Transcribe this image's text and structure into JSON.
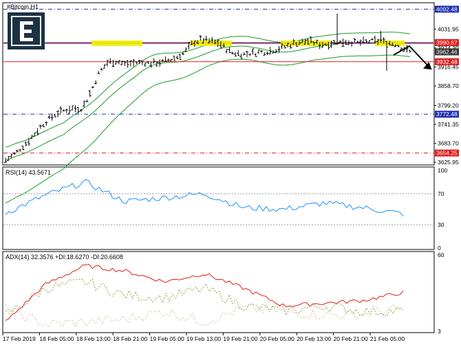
{
  "main_panel": {
    "symbol_title": "#Bitcoin,H1",
    "y_ticks": [
      "4031.95",
      "3974.30",
      "3916.45",
      "3858.70",
      "3799.20",
      "3741.35",
      "3683.70",
      "3625.95"
    ],
    "y_tick_values": [
      4031.95,
      3974.3,
      3916.45,
      3858.7,
      3799.2,
      3741.35,
      3683.7,
      3625.95
    ],
    "levels": [
      {
        "label": "4092.48",
        "value": 4092.48,
        "color": "#1f2fb0",
        "style": "dashdot"
      },
      {
        "label": "3990.67",
        "value": 3990.67,
        "color": "#e01b1b",
        "style": "solid"
      },
      {
        "label": "3962.46",
        "value": 3962.46,
        "color": "#333333",
        "style": "none"
      },
      {
        "label": "3932.48",
        "value": 3932.48,
        "color": "#e01b1b",
        "style": "solid"
      },
      {
        "label": "3772.48",
        "value": 3772.48,
        "color": "#1f2fb0",
        "style": "dashdot"
      },
      {
        "label": "3654.25",
        "value": 3654.25,
        "color": "#e01b1b",
        "style": "dashdot"
      }
    ],
    "blue_line_value": 3990.67,
    "colors": {
      "bars": "#000000",
      "bands": "#1a9a2a",
      "highlight": "#f0f000",
      "arrow": "#000000"
    }
  },
  "rsi_panel": {
    "title": "RSI(14) 43.5671",
    "y_ticks": [
      "100",
      "70",
      "30",
      "0"
    ],
    "color": "#1e90ff",
    "levels_dashed": [
      70,
      30
    ]
  },
  "adx_panel": {
    "title": "ADX(14) 32.3576 +DI:18.6270 -DI:20.6608",
    "y_ticks": [
      "60",
      "3"
    ],
    "colors": {
      "adx": "#e01b1b",
      "plus_di": "#9aa04a",
      "minus_di": "#c8c8a0"
    }
  },
  "x_axis": {
    "ticks": [
      "17 Feb 2019",
      "18 Feb 05:00",
      "18 Feb 13:00",
      "18 Feb 21:00",
      "19 Feb 05:00",
      "19 Feb 13:00",
      "19 Feb 21:00",
      "20 Feb 05:00",
      "20 Feb 13:00",
      "20 Feb 21:00",
      "21 Feb 05:00"
    ]
  },
  "chart_data": [
    {
      "type": "line",
      "title": "#Bitcoin,H1",
      "xlabel": "",
      "ylabel": "",
      "ylim": [
        3620,
        4110
      ],
      "x": [
        "17 Feb 2019",
        "18 Feb 05:00",
        "18 Feb 13:00",
        "18 Feb 21:00",
        "19 Feb 05:00",
        "19 Feb 13:00",
        "19 Feb 21:00",
        "20 Feb 05:00",
        "20 Feb 13:00",
        "20 Feb 21:00",
        "21 Feb 05:00"
      ],
      "series": [
        {
          "values": [
            3632,
            3790,
            3930,
            3925,
            3935,
            4000,
            3975,
            3985,
            3990,
            3995,
            3965
          ]
        }
      ]
    },
    {
      "type": "line",
      "title": "RSI(14) 43.5671",
      "ylim": [
        0,
        100
      ],
      "x": [
        "17 Feb 2019",
        "18 Feb 05:00",
        "18 Feb 13:00",
        "18 Feb 21:00",
        "19 Feb 05:00",
        "19 Feb 13:00",
        "19 Feb 21:00",
        "20 Feb 05:00",
        "20 Feb 13:00",
        "20 Feb 21:00",
        "21 Feb 05:00"
      ],
      "series": [
        {
          "values": [
            45,
            68,
            85,
            60,
            65,
            70,
            52,
            50,
            58,
            52,
            44
          ]
        }
      ]
    },
    {
      "type": "line",
      "title": "ADX(14) 32.3576 +DI:18.6270 -DI:20.6608",
      "x": [
        "17 Feb 2019",
        "18 Feb 05:00",
        "18 Feb 13:00",
        "18 Feb 21:00",
        "19 Feb 05:00",
        "19 Feb 13:00",
        "19 Feb 21:00",
        "20 Feb 05:00",
        "20 Feb 13:00",
        "20 Feb 21:00",
        "21 Feb 05:00"
      ],
      "series": [
        {
          "values": [
            10,
            38,
            52,
            48,
            40,
            46,
            35,
            22,
            24,
            26,
            32
          ]
        },
        {
          "values": [
            15,
            35,
            40,
            30,
            28,
            35,
            22,
            18,
            22,
            18,
            18
          ]
        },
        {
          "values": [
            20,
            8,
            10,
            12,
            18,
            10,
            20,
            18,
            15,
            16,
            20
          ]
        }
      ]
    }
  ]
}
